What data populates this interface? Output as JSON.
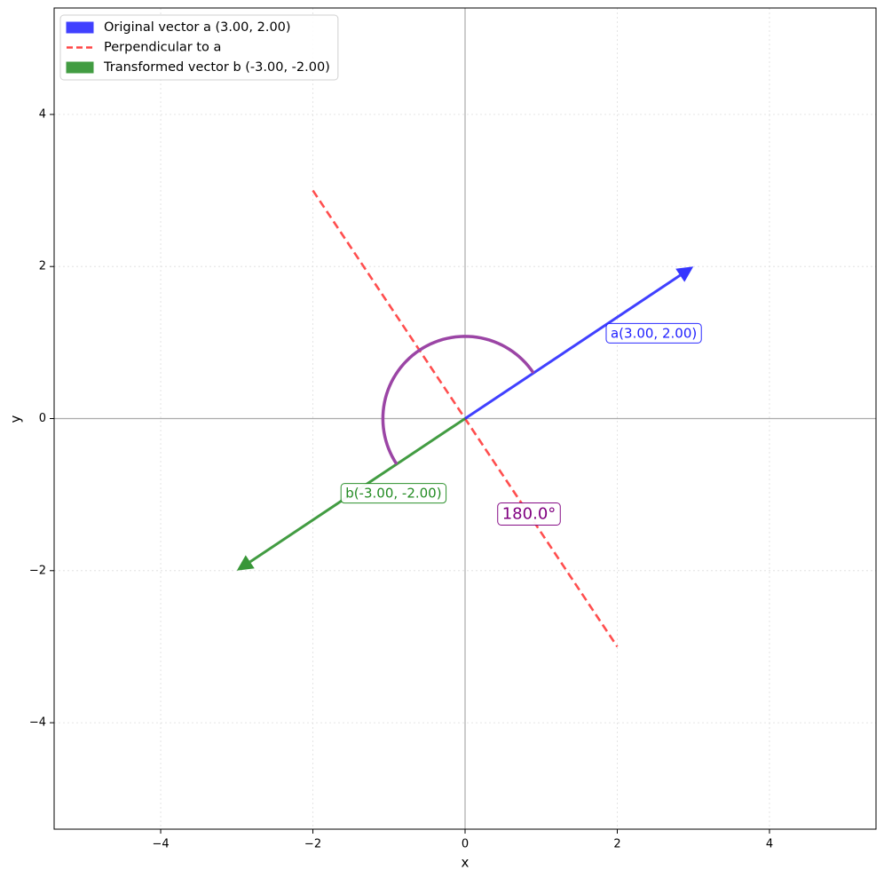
{
  "chart_data": {
    "type": "vector",
    "xlabel": "x",
    "ylabel": "y",
    "xlim": [
      -5.4,
      5.4
    ],
    "ylim": [
      -5.4,
      5.4
    ],
    "xticks": [
      {
        "value": -4,
        "label": "−4"
      },
      {
        "value": -2,
        "label": "−2"
      },
      0,
      2,
      4
    ],
    "yticks": [
      {
        "value": -4,
        "label": "−4"
      },
      {
        "value": -2,
        "label": "−2"
      },
      0,
      2,
      4
    ],
    "grid": true,
    "legend": "upper left",
    "vectors": [
      {
        "name": "Original vector a (3.00, 2.00)",
        "color": "#1f1fff",
        "x": [
          0,
          3
        ],
        "y": [
          0,
          2
        ],
        "label": "a(3.00, 2.00)"
      },
      {
        "name": "Transformed vector b (-3.00, -2.00)",
        "color": "#228b22",
        "x": [
          0,
          -3
        ],
        "y": [
          0,
          -2
        ],
        "label": "b(-3.00, -2.00)"
      }
    ],
    "lines": [
      {
        "name": "Perpendicular to a",
        "color": "#ff4444",
        "x": [
          -2,
          2
        ],
        "y": [
          3,
          -3
        ],
        "dashed": true
      }
    ],
    "angle": {
      "value": 180,
      "label": "180.0°",
      "radius": 1.08,
      "color": "#9b45a5",
      "text_color": "#800080"
    }
  }
}
